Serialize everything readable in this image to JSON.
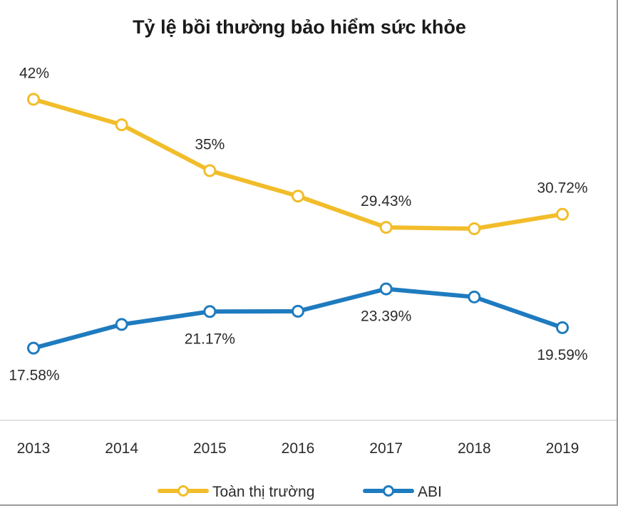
{
  "chart_data": {
    "type": "line",
    "title": "Tỷ lệ bồi thường bảo hiểm sức khỏe",
    "categories": [
      "2013",
      "2014",
      "2015",
      "2016",
      "2017",
      "2018",
      "2019"
    ],
    "ylim": [
      0,
      50
    ],
    "grid": false,
    "legend_position": "bottom",
    "series": [
      {
        "name": "Toàn thị trường",
        "color": "#f2bd2a",
        "values": [
          42.0,
          39.5,
          35.0,
          32.5,
          29.43,
          29.3,
          30.72
        ],
        "labels": [
          "42%",
          "",
          "35%",
          "",
          "29.43%",
          "",
          "30.72%"
        ],
        "label_position": "above"
      },
      {
        "name": "ABI",
        "color": "#1f7bbf",
        "values": [
          17.58,
          19.9,
          21.17,
          21.2,
          23.39,
          22.6,
          19.59
        ],
        "labels": [
          "17.58%",
          "",
          "21.17%",
          "",
          "23.39%",
          "",
          "19.59%"
        ],
        "label_position": "below"
      }
    ]
  }
}
